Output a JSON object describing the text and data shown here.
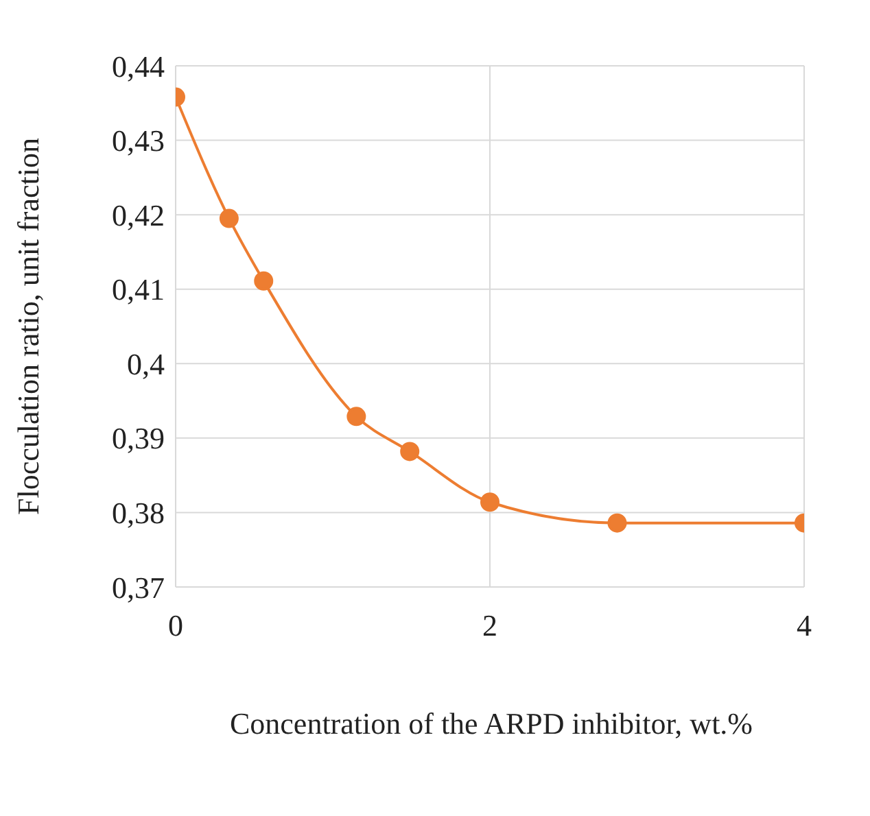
{
  "chart_data": {
    "type": "line",
    "xlabel": "Concentration of the ARPD inhibitor, wt.%",
    "ylabel": "Flocculation ratio, unit fraction",
    "x": [
      0,
      0.34,
      0.56,
      1.15,
      1.49,
      2.0,
      2.81,
      4
    ],
    "series": [
      {
        "color": "#ed7d31",
        "values": [
          0.4358,
          0.4195,
          0.4111,
          0.3929,
          0.3882,
          0.3814,
          0.3786,
          0.3786
        ]
      }
    ],
    "xlim": [
      0,
      4
    ],
    "xticks": [
      0,
      2,
      4
    ],
    "ylim": [
      0.37,
      0.44
    ],
    "yticks": [
      {
        "value": 0.37,
        "label": "0,37"
      },
      {
        "value": 0.38,
        "label": "0,38"
      },
      {
        "value": 0.39,
        "label": "0,39"
      },
      {
        "value": 0.4,
        "label": "0,4"
      },
      {
        "value": 0.41,
        "label": "0,41"
      },
      {
        "value": 0.42,
        "label": "0,42"
      },
      {
        "value": 0.43,
        "label": "0,43"
      },
      {
        "value": 0.44,
        "label": "0,44"
      }
    ],
    "grid": true,
    "marker": "circle",
    "legend": false
  }
}
